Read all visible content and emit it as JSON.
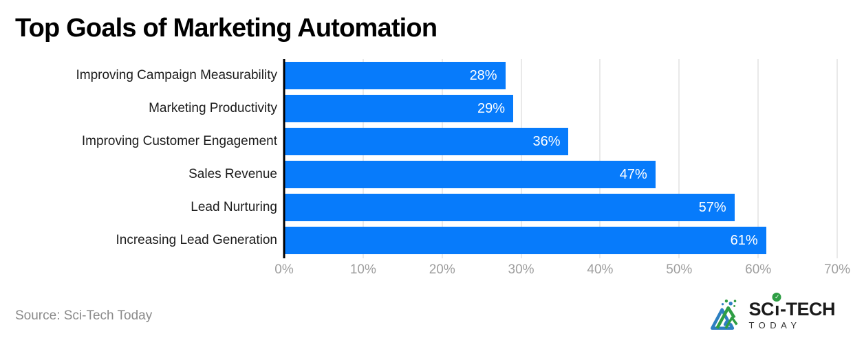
{
  "title": "Top Goals of Marketing Automation",
  "source_label": "Source: Sci-Tech Today",
  "logo": {
    "brand_prefix": "SC",
    "brand_i": "ı",
    "brand_suffix": "-TECH",
    "brand_line2": "TODAY",
    "check_icon": "✓"
  },
  "colors": {
    "bar": "#077bfb",
    "axis": "#000000",
    "gridline": "#e9e9e9",
    "tick_text": "#9e9e9e",
    "category_text": "#1c1c1c",
    "value_text": "#ffffff",
    "source_text": "#8a8a8a",
    "logo_green": "#2e9e44",
    "logo_blue": "#2d7fc1",
    "logo_text": "#1b1b1b"
  },
  "chart_data": {
    "type": "bar",
    "orientation": "horizontal",
    "title": "Top Goals of Marketing Automation",
    "categories": [
      "Improving Campaign Measurability",
      "Marketing Productivity",
      "Improving Customer Engagement",
      "Sales Revenue",
      "Lead Nurturing",
      "Increasing Lead Generation"
    ],
    "values": [
      28,
      29,
      36,
      47,
      57,
      61
    ],
    "value_labels": [
      "28%",
      "29%",
      "36%",
      "47%",
      "57%",
      "61%"
    ],
    "x_ticks": [
      "0%",
      "10%",
      "20%",
      "30%",
      "40%",
      "50%",
      "60%",
      "70%"
    ],
    "xlim": [
      0,
      70
    ],
    "grid": true,
    "legend": "none",
    "bar_color": "#077bfb"
  }
}
